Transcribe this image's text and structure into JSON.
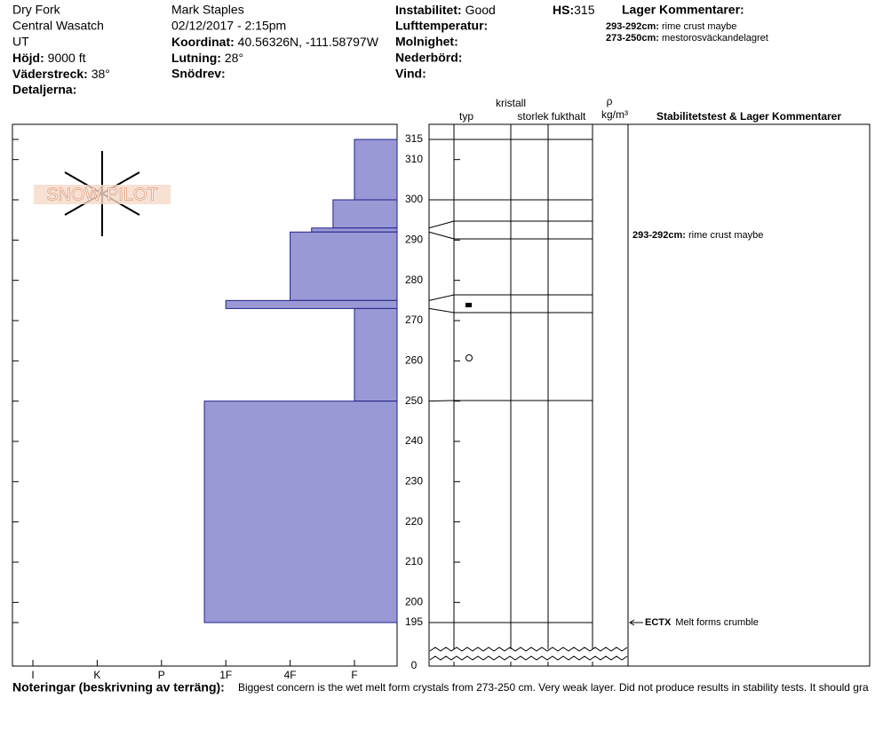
{
  "header": {
    "location": "Dry Fork",
    "range": "Central Wasatch",
    "state": "UT",
    "elevation_label": "Höjd:",
    "elevation": "9000 ft",
    "aspect_label": "Väderstreck:",
    "aspect": "38°",
    "details_label": "Detaljerna:",
    "observer": "Mark Staples",
    "datetime": "02/12/2017 - 2:15pm",
    "coord_label": "Koordinat:",
    "coord": "40.56326N, -111.58797W",
    "slope_label": "Lutning:",
    "slope": "28°",
    "wind_loading_label": "Snödrev:",
    "stability_label": "Instabilitet:",
    "stability": "Good",
    "air_temp_label": "Lufttemperatur:",
    "sky_label": "Molnighet:",
    "precip_label": "Nederbörd:",
    "wind_label": "Vind:",
    "hs_label": "HS:",
    "hs": "315",
    "layer_comments_label": "Lager Kommentarer:",
    "layer_comments": [
      {
        "range": "293-292cm:",
        "text": "rime crust maybe"
      },
      {
        "range": "273-250cm:",
        "text": "mestorosväckandelagret"
      }
    ]
  },
  "logo": "SNOW PILOT",
  "columns": {
    "crystal": "kristall",
    "type": "typ",
    "size": "storlek",
    "moisture": "fukthalt",
    "density_symbol": "ρ",
    "density_unit": "kg/m³",
    "stability": "Stabilitetstest & Lager Kommentarer"
  },
  "hardness_axis": [
    "I",
    "K",
    "P",
    "1F",
    "4F",
    "F"
  ],
  "depth_ticks": [
    315,
    310,
    300,
    290,
    280,
    270,
    260,
    250,
    240,
    230,
    220,
    210,
    200,
    195,
    0
  ],
  "layers": [
    {
      "top": 315,
      "bottom": 300,
      "hardness": "F"
    },
    {
      "top": 300,
      "bottom": 293,
      "hardness": "F+"
    },
    {
      "top": 293,
      "bottom": 292,
      "hardness": "4F-"
    },
    {
      "top": 292,
      "bottom": 275,
      "hardness": "4F"
    },
    {
      "top": 275,
      "bottom": 273,
      "hardness": "1F"
    },
    {
      "top": 273,
      "bottom": 250,
      "hardness": "F"
    },
    {
      "top": 250,
      "bottom": 195,
      "hardness": "1F+"
    }
  ],
  "comments": [
    {
      "range": "293-292cm:",
      "text": "rime crust maybe"
    }
  ],
  "tests": [
    {
      "depth": 195,
      "code": "ECTX",
      "text": "Melt forms crumble"
    }
  ],
  "notes_label": "Noteringar (beskrivning av terräng):",
  "notes": "Biggest concern is the wet melt form crystals from 273-250 cm. Very weak layer. Did not produce results in stability tests. It should gra"
}
